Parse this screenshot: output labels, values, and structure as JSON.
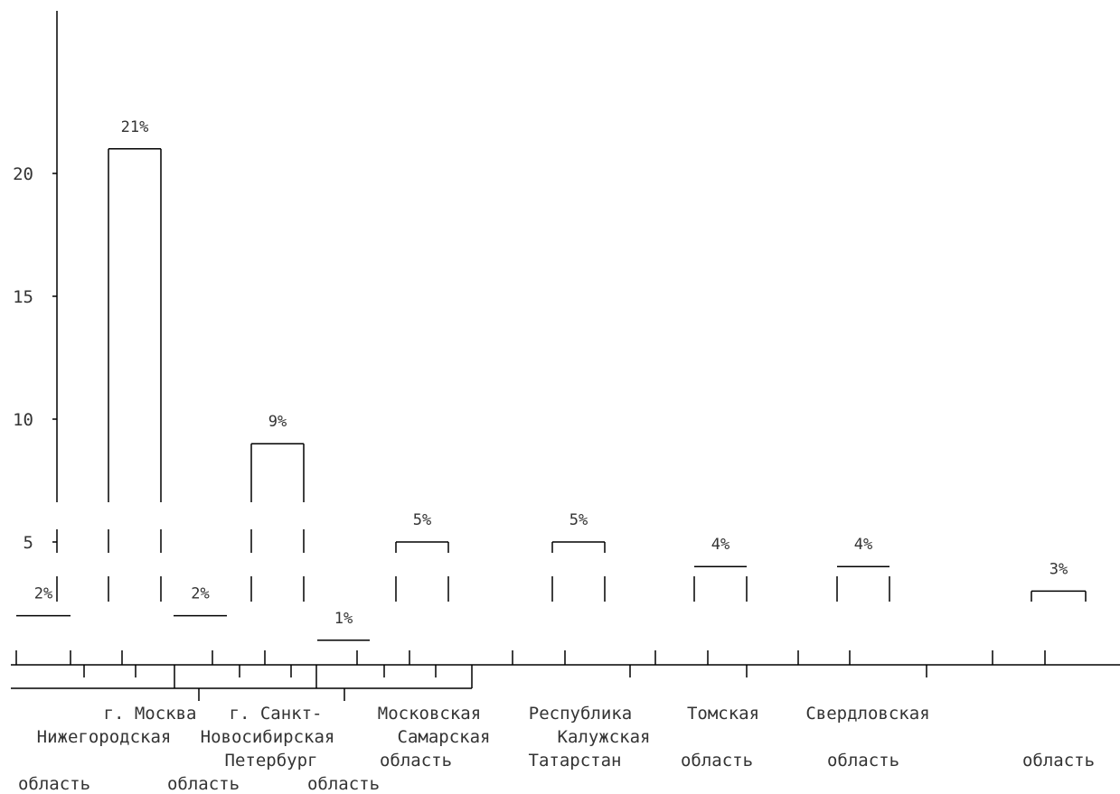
{
  "chart_data": {
    "type": "bar",
    "title": "",
    "xlabel": "",
    "ylabel": "",
    "ylim": [
      0,
      22
    ],
    "yticks": [
      "5",
      "10",
      "15",
      "20"
    ],
    "grid": false,
    "categories": [
      [
        "Нижегородская",
        "область"
      ],
      [
        "г. Москва"
      ],
      [
        "Новосибирская",
        "область"
      ],
      [
        "г. Санкт-",
        "Петербург"
      ],
      [
        "Самарская",
        "область"
      ],
      [
        "Московская",
        "область"
      ],
      [
        "Республика",
        "Татарстан"
      ],
      [
        "Калужская",
        "область"
      ],
      [
        "Томская",
        "область"
      ],
      [
        "Свердловская",
        "область"
      ]
    ],
    "values": [
      2,
      21,
      2,
      9,
      1,
      5,
      5,
      4,
      4,
      3
    ],
    "data_labels": [
      "2%",
      "21%",
      "2%",
      "9%",
      "1%",
      "5%",
      "5%",
      "4%",
      "4%",
      "3%"
    ],
    "colors": {
      "line": "#000000",
      "text": "#333333",
      "background": "#ffffff"
    }
  }
}
